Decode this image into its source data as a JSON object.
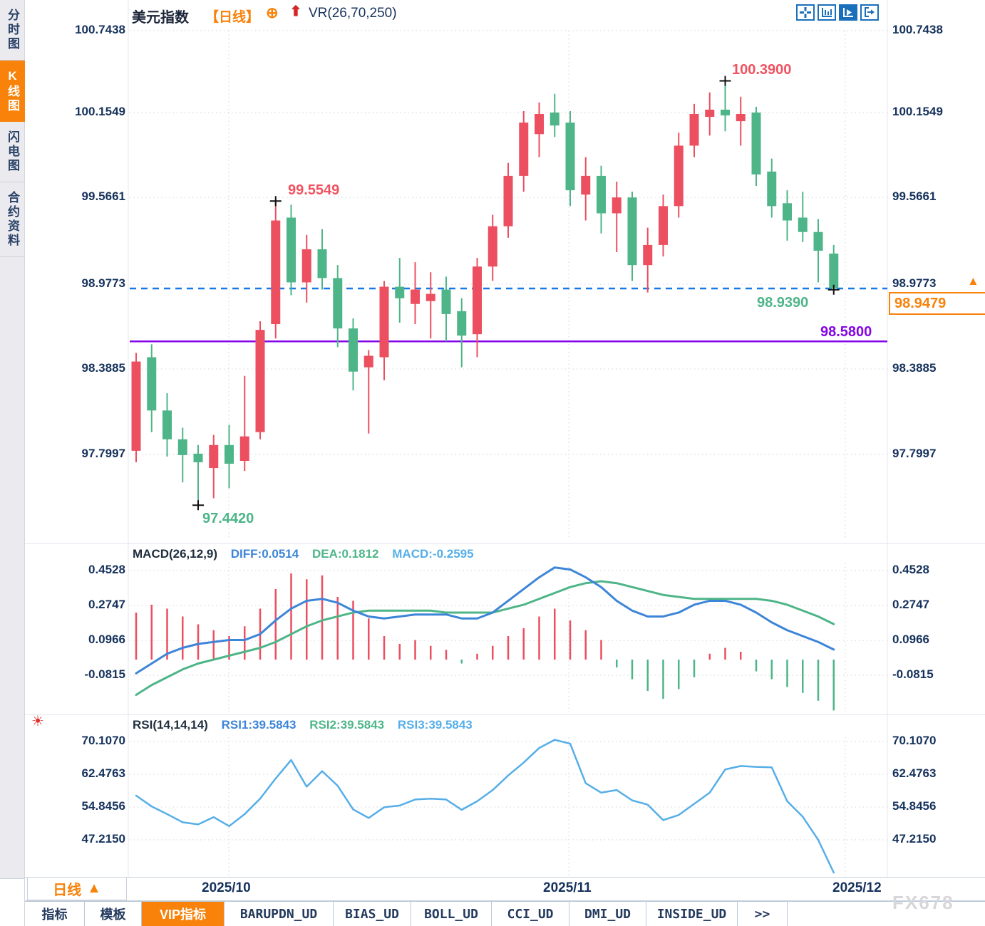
{
  "header": {
    "title": "美元指数",
    "period_tag": "【日线】",
    "plus_icon": "⊕",
    "up_arrow_icon": "⬆",
    "vr_label": "VR(26,70,250)",
    "toolbar_icons": [
      "crosshair-icon",
      "axis-scale-icon",
      "axis-play-icon",
      "exit-right-icon"
    ]
  },
  "sidebar": {
    "items": [
      {
        "label": "分时图",
        "active": false
      },
      {
        "label": "K线图",
        "active": true
      },
      {
        "label": "闪电图",
        "active": false
      },
      {
        "label": "合约资料",
        "active": false
      }
    ]
  },
  "colors": {
    "up": "#ec4f5f",
    "down": "#4eb588",
    "accent_orange": "#f8820a",
    "diff_blue": "#3d85d8",
    "dea_green": "#4eb588",
    "macd_cyan": "#56aee8",
    "rsi_blue": "#56aee8",
    "support_purple": "#8405e8",
    "dashed_blue": "#1779e8",
    "axis_text": "#16325c",
    "icon_blue": "#1a6fba",
    "annotation_red": "#f05260",
    "annotation_green": "#4eb588"
  },
  "price_panel": {
    "axis_labels": [
      "100.7438",
      "100.1549",
      "99.5661",
      "98.9773",
      "98.3885",
      "97.7997"
    ],
    "annotations": {
      "high1": "99.5549",
      "high2": "100.3900",
      "low1": "97.4420",
      "low2": "98.9390",
      "support": "98.5800",
      "last_price": "98.9479"
    }
  },
  "macd_panel": {
    "name": "MACD(26,12,9)",
    "diff_label": "DIFF:0.0514",
    "dea_label": "DEA:0.1812",
    "macd_label": "MACD:-0.2595",
    "axis_labels": [
      "0.4528",
      "0.2747",
      "0.0966",
      "-0.0815"
    ]
  },
  "rsi_panel": {
    "name": "RSI(14,14,14)",
    "rsi1_label": "RSI1:39.5843",
    "rsi2_label": "RSI2:39.5843",
    "rsi3_label": "RSI3:39.5843",
    "axis_labels": [
      "70.1070",
      "62.4763",
      "54.8456",
      "47.2150"
    ],
    "sun_icon": "☀"
  },
  "xaxis": {
    "date_labels": [
      "2025/10",
      "2025/11",
      "2025/12"
    ],
    "period_label": "日线",
    "period_arrow": "▲"
  },
  "bottom_tabs": [
    {
      "label": "指标",
      "cn": true,
      "active": false
    },
    {
      "label": "模板",
      "cn": true,
      "active": false
    },
    {
      "label": "VIP指标",
      "cn": true,
      "active": true
    },
    {
      "label": "BARUPDN_UD",
      "cn": false,
      "active": false
    },
    {
      "label": "BIAS_UD",
      "cn": false,
      "active": false
    },
    {
      "label": "BOLL_UD",
      "cn": false,
      "active": false
    },
    {
      "label": "CCI_UD",
      "cn": false,
      "active": false
    },
    {
      "label": "DMI_UD",
      "cn": false,
      "active": false
    },
    {
      "label": "INSIDE_UD",
      "cn": false,
      "active": false
    },
    {
      "label": ">>",
      "cn": false,
      "active": false
    }
  ],
  "watermark": "FX678",
  "chart_data": [
    {
      "type": "candlestick",
      "title": "美元指数 日线",
      "up_color_means": "close>open (red up / green down)",
      "y_axis_values": [
        100.7438,
        100.1549,
        99.5661,
        98.9773,
        98.3885,
        97.7997
      ],
      "ohlc": [
        [
          97.82,
          98.5,
          97.74,
          98.44
        ],
        [
          98.47,
          98.56,
          97.95,
          98.1
        ],
        [
          98.1,
          98.22,
          97.78,
          97.9
        ],
        [
          97.9,
          97.98,
          97.6,
          97.79
        ],
        [
          97.8,
          97.86,
          97.442,
          97.74
        ],
        [
          97.7,
          97.93,
          97.49,
          97.86
        ],
        [
          97.86,
          98.0,
          97.56,
          97.73
        ],
        [
          97.75,
          98.34,
          97.68,
          97.92
        ],
        [
          97.95,
          98.72,
          97.9,
          98.66
        ],
        [
          98.7,
          99.5549,
          98.6,
          99.42
        ],
        [
          99.44,
          99.53,
          98.9,
          98.99
        ],
        [
          98.99,
          99.32,
          98.85,
          99.22
        ],
        [
          99.22,
          99.36,
          98.94,
          99.02
        ],
        [
          99.02,
          99.11,
          98.54,
          98.67
        ],
        [
          98.67,
          98.74,
          98.24,
          98.37
        ],
        [
          98.4,
          98.52,
          97.94,
          98.48
        ],
        [
          98.47,
          99.0,
          98.31,
          98.96
        ],
        [
          98.96,
          99.16,
          98.71,
          98.88
        ],
        [
          98.84,
          99.13,
          98.7,
          98.94
        ],
        [
          98.86,
          99.06,
          98.6,
          98.91
        ],
        [
          98.94,
          99.03,
          98.58,
          98.77
        ],
        [
          98.79,
          98.88,
          98.4,
          98.62
        ],
        [
          98.63,
          99.16,
          98.47,
          99.1
        ],
        [
          99.1,
          99.46,
          99.0,
          99.38
        ],
        [
          99.38,
          99.82,
          99.3,
          99.73
        ],
        [
          99.73,
          100.18,
          99.62,
          100.1
        ],
        [
          100.02,
          100.24,
          99.86,
          100.16
        ],
        [
          100.17,
          100.3,
          100.0,
          100.08
        ],
        [
          100.1,
          100.18,
          99.52,
          99.63
        ],
        [
          99.6,
          99.86,
          99.42,
          99.73
        ],
        [
          99.73,
          99.8,
          99.33,
          99.47
        ],
        [
          99.47,
          99.69,
          99.2,
          99.58
        ],
        [
          99.58,
          99.62,
          99.0,
          99.11
        ],
        [
          99.11,
          99.37,
          98.92,
          99.25
        ],
        [
          99.25,
          99.6,
          99.17,
          99.52
        ],
        [
          99.52,
          100.03,
          99.44,
          99.94
        ],
        [
          99.94,
          100.23,
          99.86,
          100.16
        ],
        [
          100.14,
          100.31,
          100.01,
          100.19
        ],
        [
          100.19,
          100.39,
          100.04,
          100.15
        ],
        [
          100.11,
          100.28,
          99.94,
          100.16
        ],
        [
          100.17,
          100.21,
          99.66,
          99.74
        ],
        [
          99.76,
          99.85,
          99.44,
          99.52
        ],
        [
          99.54,
          99.63,
          99.28,
          99.42
        ],
        [
          99.44,
          99.62,
          99.27,
          99.34
        ],
        [
          99.34,
          99.43,
          98.99,
          99.21
        ],
        [
          99.19,
          99.25,
          98.939,
          98.9479
        ]
      ],
      "markers": [
        {
          "index": 4,
          "price": 97.442,
          "label": "97.4420"
        },
        {
          "index": 9,
          "price": 99.5549,
          "label": "99.5549"
        },
        {
          "index": 38,
          "price": 100.39,
          "label": "100.3900"
        },
        {
          "index": 45,
          "price": 98.939,
          "label": "98.9390"
        }
      ],
      "hlines": [
        {
          "value": 98.58,
          "label": "98.5800",
          "style": "solid",
          "color": "#8405e8"
        },
        {
          "value": 98.9479,
          "label": "98.9479",
          "style": "dashed",
          "color": "#1779e8"
        }
      ],
      "xticks": [
        "2025/10",
        "2025/11",
        "2025/12"
      ]
    },
    {
      "type": "bar",
      "title": "MACD(26,12,9)",
      "last_values": {
        "DIFF": 0.0514,
        "DEA": 0.1812,
        "MACD": -0.2595
      },
      "y_axis_values": [
        0.4528,
        0.2747,
        0.0966,
        -0.0815
      ],
      "hist": [
        0.24,
        0.28,
        0.26,
        0.22,
        0.18,
        0.15,
        0.12,
        0.17,
        0.26,
        0.36,
        0.44,
        0.41,
        0.43,
        0.32,
        0.3,
        0.21,
        0.12,
        0.08,
        0.1,
        0.07,
        0.05,
        -0.02,
        0.03,
        0.07,
        0.12,
        0.16,
        0.22,
        0.26,
        0.2,
        0.15,
        0.1,
        -0.04,
        -0.1,
        -0.16,
        -0.2,
        -0.15,
        -0.09,
        0.03,
        0.06,
        0.04,
        -0.06,
        -0.1,
        -0.14,
        -0.17,
        -0.21,
        -0.2595
      ],
      "diff": [
        -0.07,
        -0.02,
        0.03,
        0.06,
        0.08,
        0.09,
        0.1,
        0.1,
        0.13,
        0.2,
        0.26,
        0.3,
        0.31,
        0.29,
        0.25,
        0.22,
        0.21,
        0.22,
        0.23,
        0.23,
        0.23,
        0.21,
        0.21,
        0.24,
        0.3,
        0.36,
        0.42,
        0.47,
        0.46,
        0.42,
        0.37,
        0.3,
        0.25,
        0.22,
        0.22,
        0.24,
        0.28,
        0.3,
        0.3,
        0.28,
        0.24,
        0.19,
        0.15,
        0.12,
        0.09,
        0.0514
      ],
      "dea": [
        -0.18,
        -0.13,
        -0.09,
        -0.05,
        -0.02,
        0.0,
        0.02,
        0.04,
        0.06,
        0.09,
        0.13,
        0.17,
        0.2,
        0.22,
        0.24,
        0.25,
        0.25,
        0.25,
        0.25,
        0.25,
        0.24,
        0.24,
        0.24,
        0.24,
        0.26,
        0.28,
        0.31,
        0.34,
        0.37,
        0.39,
        0.4,
        0.39,
        0.37,
        0.35,
        0.33,
        0.32,
        0.31,
        0.31,
        0.31,
        0.31,
        0.31,
        0.3,
        0.28,
        0.25,
        0.22,
        0.1812
      ]
    },
    {
      "type": "line",
      "title": "RSI(14,14,14)",
      "last_values": {
        "RSI1": 39.5843,
        "RSI2": 39.5843,
        "RSI3": 39.5843
      },
      "y_axis_values": [
        70.107,
        62.4763,
        54.8456,
        47.215
      ],
      "values": [
        57.5,
        55.0,
        53.2,
        51.3,
        50.8,
        52.5,
        50.4,
        53.2,
        56.8,
        61.5,
        65.8,
        59.6,
        63.2,
        59.8,
        54.3,
        52.3,
        54.8,
        55.2,
        56.6,
        56.8,
        56.6,
        54.2,
        56.2,
        58.8,
        62.2,
        65.2,
        68.6,
        70.5,
        69.6,
        60.4,
        58.2,
        58.8,
        56.4,
        55.4,
        51.8,
        53.0,
        55.6,
        58.2,
        63.6,
        64.4,
        64.2,
        64.1,
        56.2,
        52.6,
        47.2,
        39.5843
      ]
    }
  ]
}
